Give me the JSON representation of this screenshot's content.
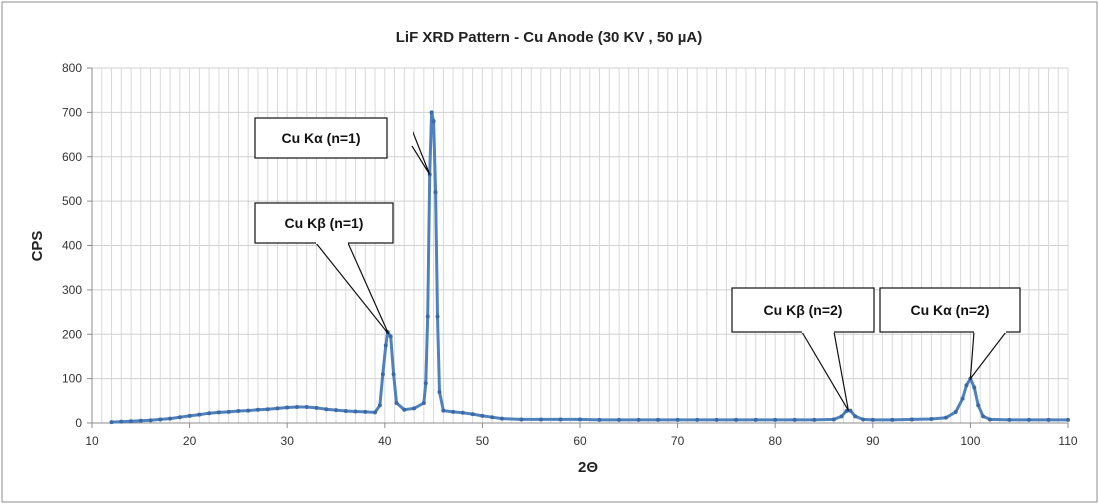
{
  "chart_data": {
    "type": "line",
    "title": "LiF XRD Pattern - Cu Anode (30 KV , 50 µA)",
    "xlabel": "2Θ",
    "ylabel": "CPS",
    "xlim": [
      10,
      110
    ],
    "ylim": [
      0,
      800
    ],
    "xticks": [
      10,
      20,
      30,
      40,
      50,
      60,
      70,
      80,
      90,
      100,
      110
    ],
    "yticks": [
      0,
      100,
      200,
      300,
      400,
      500,
      600,
      700,
      800
    ],
    "grid": true,
    "series": [
      {
        "name": "LiF XRD",
        "color": "#4f81bd",
        "points": [
          [
            12,
            2
          ],
          [
            13,
            3
          ],
          [
            14,
            4
          ],
          [
            15,
            5
          ],
          [
            16,
            6
          ],
          [
            17,
            8
          ],
          [
            18,
            10
          ],
          [
            19,
            13
          ],
          [
            20,
            16
          ],
          [
            21,
            19
          ],
          [
            22,
            22
          ],
          [
            23,
            24
          ],
          [
            24,
            25
          ],
          [
            25,
            27
          ],
          [
            26,
            28
          ],
          [
            27,
            30
          ],
          [
            28,
            31
          ],
          [
            29,
            33
          ],
          [
            30,
            35
          ],
          [
            31,
            36
          ],
          [
            32,
            36
          ],
          [
            33,
            34
          ],
          [
            34,
            31
          ],
          [
            35,
            29
          ],
          [
            36,
            27
          ],
          [
            37,
            26
          ],
          [
            38,
            25
          ],
          [
            39,
            24
          ],
          [
            39.5,
            40
          ],
          [
            39.8,
            110
          ],
          [
            40.1,
            175
          ],
          [
            40.3,
            205
          ],
          [
            40.6,
            195
          ],
          [
            40.9,
            110
          ],
          [
            41.2,
            45
          ],
          [
            42,
            30
          ],
          [
            43,
            33
          ],
          [
            44,
            45
          ],
          [
            44.2,
            90
          ],
          [
            44.4,
            240
          ],
          [
            44.6,
            560
          ],
          [
            44.8,
            700
          ],
          [
            45,
            680
          ],
          [
            45.2,
            520
          ],
          [
            45.4,
            240
          ],
          [
            45.6,
            70
          ],
          [
            46,
            28
          ],
          [
            47,
            25
          ],
          [
            48,
            23
          ],
          [
            49,
            20
          ],
          [
            50,
            16
          ],
          [
            51,
            13
          ],
          [
            52,
            10
          ],
          [
            54,
            8
          ],
          [
            56,
            8
          ],
          [
            58,
            8
          ],
          [
            60,
            8
          ],
          [
            62,
            7
          ],
          [
            64,
            7
          ],
          [
            66,
            7
          ],
          [
            68,
            7
          ],
          [
            70,
            7
          ],
          [
            72,
            7
          ],
          [
            74,
            7
          ],
          [
            76,
            7
          ],
          [
            78,
            7
          ],
          [
            80,
            7
          ],
          [
            82,
            7
          ],
          [
            84,
            7
          ],
          [
            86,
            8
          ],
          [
            86.8,
            15
          ],
          [
            87.3,
            27
          ],
          [
            87.7,
            28
          ],
          [
            88.2,
            15
          ],
          [
            89,
            8
          ],
          [
            90,
            7
          ],
          [
            92,
            7
          ],
          [
            94,
            8
          ],
          [
            96,
            9
          ],
          [
            97.5,
            12
          ],
          [
            98.5,
            25
          ],
          [
            99.2,
            55
          ],
          [
            99.6,
            85
          ],
          [
            100,
            100
          ],
          [
            100.4,
            80
          ],
          [
            100.8,
            40
          ],
          [
            101.3,
            15
          ],
          [
            102,
            8
          ],
          [
            104,
            7
          ],
          [
            106,
            7
          ],
          [
            108,
            7
          ],
          [
            110,
            7
          ]
        ]
      }
    ],
    "annotations": [
      {
        "text": "Cu Kα (n=1)",
        "target": [
          44.6,
          560
        ]
      },
      {
        "text": "Cu Kβ (n=1)",
        "target": [
          40.4,
          200
        ]
      },
      {
        "text": "Cu Kβ (n=2)",
        "target": [
          87.5,
          28
        ]
      },
      {
        "text": "Cu Kα (n=2)",
        "target": [
          100,
          100
        ]
      }
    ]
  }
}
